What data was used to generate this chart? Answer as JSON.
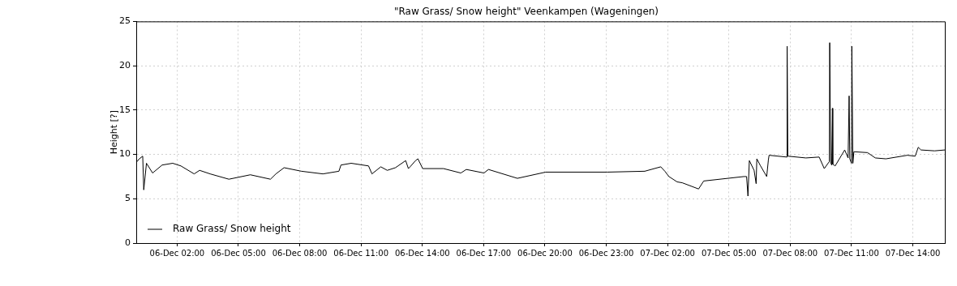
{
  "chart_data": {
    "type": "line",
    "title": "\"Raw Grass/ Snow height\" Veenkampen (Wageningen)",
    "ylabel": "Height [?]",
    "x": [
      "--12-06T00:00",
      "--12-06T00:09",
      "--12-06T00:19",
      "--12-06T00:22",
      "--12-06T00:30",
      "--12-06T00:48",
      "--12-06T01:16",
      "--12-06T01:47",
      "--12-06T02:11",
      "--12-06T02:50",
      "--12-06T03:06",
      "--12-06T03:37",
      "--12-06T04:32",
      "--12-06T05:35",
      "--12-06T06:34",
      "--12-06T06:50",
      "--12-06T07:14",
      "--12-06T08:05",
      "--12-06T09:08",
      "--12-06T09:55",
      "--12-06T10:01",
      "--12-06T10:31",
      "--12-06T11:22",
      "--12-06T11:32",
      "--12-06T11:58",
      "--12-06T12:17",
      "--12-06T12:41",
      "--12-06T13:11",
      "--12-06T13:19",
      "--12-06T13:24",
      "--12-06T13:40",
      "--12-06T13:47",
      "--12-06T14:01",
      "--12-06T15:02",
      "--12-06T15:53",
      "--12-06T16:09",
      "--12-06T17:01",
      "--12-06T17:14",
      "--12-06T18:39",
      "--12-06T20:02",
      "--12-06T23:02",
      "--12-07T00:53",
      "--12-07T01:40",
      "--12-07T01:52",
      "--12-07T02:04",
      "--12-07T02:28",
      "--12-07T02:43",
      "--12-07T03:31",
      "--12-07T03:46",
      "--12-07T05:44",
      "--12-07T05:52",
      "--12-07T05:56",
      "--12-07T06:00",
      "--12-07T06:14",
      "--12-07T06:20",
      "--12-07T06:22",
      "--12-07T06:33",
      "--12-07T06:51",
      "--12-07T06:56",
      "--12-07T06:58",
      "--12-07T07:50",
      "--12-07T07:51",
      "--12-07T07:53",
      "--12-07T08:46",
      "--12-07T09:25",
      "--12-07T09:40",
      "--12-07T09:55",
      "--12-07T09:56",
      "--12-07T09:59",
      "--12-07T10:02",
      "--12-07T10:04",
      "--12-07T10:05",
      "--12-07T10:12",
      "--12-07T10:40",
      "--12-07T10:50",
      "--12-07T10:53",
      "--12-07T10:55",
      "--12-07T11:00",
      "--12-07T11:01",
      "--12-07T11:04",
      "--12-07T11:07",
      "--12-07T11:47",
      "--12-07T12:10",
      "--12-07T12:41",
      "--12-07T13:44",
      "--12-07T14:07",
      "--12-07T14:16",
      "--12-07T14:24",
      "--12-07T15:04",
      "--12-07T15:34"
    ],
    "series": [
      {
        "name": "Raw Grass/ Snow height",
        "color": "#000000",
        "values": [
          9.1,
          9.5,
          9.8,
          6.0,
          9.0,
          7.9,
          8.8,
          9.0,
          8.7,
          7.8,
          8.2,
          7.8,
          7.2,
          7.7,
          7.2,
          7.8,
          8.5,
          8.1,
          7.8,
          8.1,
          8.8,
          9.0,
          8.7,
          7.8,
          8.6,
          8.2,
          8.5,
          9.3,
          8.4,
          8.6,
          9.3,
          9.5,
          8.4,
          8.4,
          7.9,
          8.3,
          7.9,
          8.3,
          7.3,
          8.0,
          8.0,
          8.1,
          8.6,
          8.1,
          7.5,
          6.9,
          6.8,
          6.1,
          7.0,
          7.5,
          7.5,
          5.3,
          9.3,
          8.2,
          6.7,
          9.5,
          8.7,
          7.5,
          9.4,
          9.9,
          9.7,
          22.2,
          9.8,
          9.6,
          9.7,
          8.4,
          9.2,
          22.6,
          9.0,
          8.8,
          15.2,
          8.9,
          8.7,
          10.5,
          9.6,
          16.6,
          9.5,
          9.0,
          22.2,
          9.0,
          10.3,
          10.2,
          9.6,
          9.5,
          9.9,
          9.8,
          10.8,
          10.5,
          10.4,
          10.5
        ]
      }
    ],
    "xlim": [
      "--12-06T00:00",
      "--12-07T15:34"
    ],
    "xticks": [
      {
        "value": "--12-06T02:00",
        "label": "06-Dec 02:00"
      },
      {
        "value": "--12-06T05:00",
        "label": "06-Dec 05:00"
      },
      {
        "value": "--12-06T08:00",
        "label": "06-Dec 08:00"
      },
      {
        "value": "--12-06T11:00",
        "label": "06-Dec 11:00"
      },
      {
        "value": "--12-06T14:00",
        "label": "06-Dec 14:00"
      },
      {
        "value": "--12-06T17:00",
        "label": "06-Dec 17:00"
      },
      {
        "value": "--12-06T20:00",
        "label": "06-Dec 20:00"
      },
      {
        "value": "--12-06T23:00",
        "label": "06-Dec 23:00"
      },
      {
        "value": "--12-07T02:00",
        "label": "07-Dec 02:00"
      },
      {
        "value": "--12-07T05:00",
        "label": "07-Dec 05:00"
      },
      {
        "value": "--12-07T08:00",
        "label": "07-Dec 08:00"
      },
      {
        "value": "--12-07T11:00",
        "label": "07-Dec 11:00"
      },
      {
        "value": "--12-07T14:00",
        "label": "07-Dec 14:00"
      }
    ],
    "ylim": [
      0,
      25
    ],
    "yticks": [
      0,
      5,
      10,
      15,
      20,
      25
    ],
    "grid": true,
    "legend": "bottom left",
    "marker": "none",
    "line_style": "solid"
  }
}
